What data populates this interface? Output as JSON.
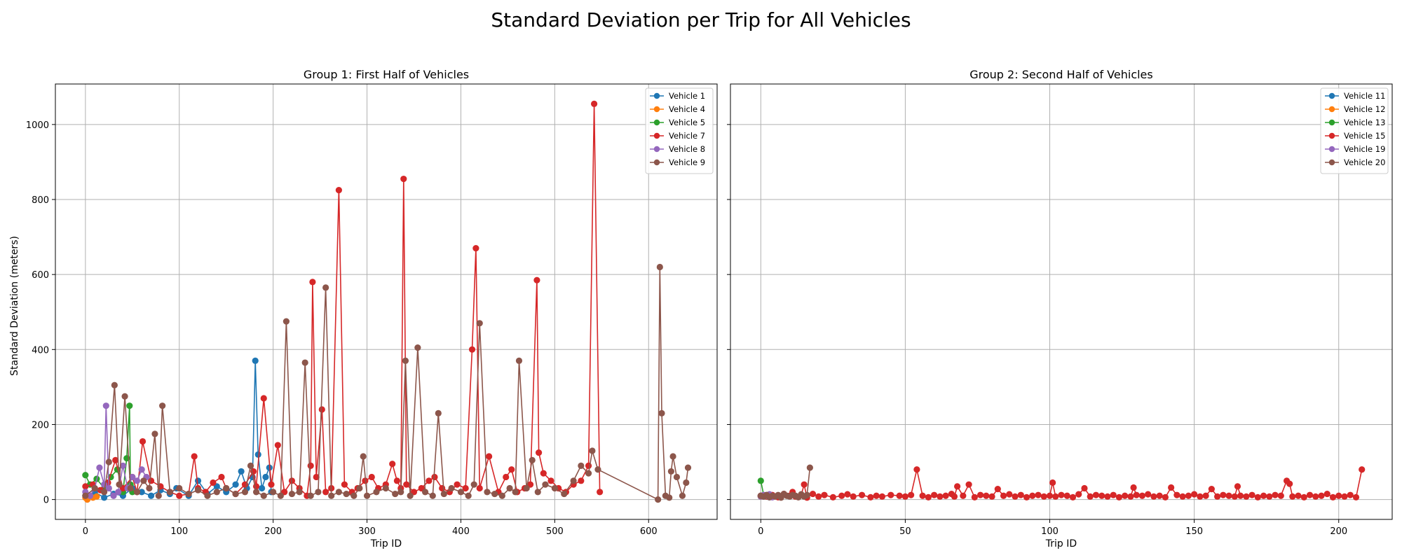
{
  "figure": {
    "title": "Standard Deviation per Trip for All Vehicles"
  },
  "colors": {
    "c1": "#1f77b4",
    "c2": "#ff7f0e",
    "c3": "#2ca02c",
    "c4": "#d62728",
    "c5": "#9467bd",
    "c6": "#8c564b",
    "grid": "#b0b0b0"
  },
  "chart_data": [
    {
      "type": "line",
      "title": "Group 1: First Half of Vehicles",
      "xlabel": "Trip ID",
      "ylabel": "Standard Deviation (meters)",
      "xlim": [
        -32,
        673
      ],
      "ylim": [
        -53,
        1108
      ],
      "xticks": [
        0,
        100,
        200,
        300,
        400,
        500,
        600
      ],
      "yticks": [
        0,
        200,
        400,
        600,
        800,
        1000
      ],
      "grid": true,
      "legend_position": "top-right",
      "series": [
        {
          "name": "Vehicle 1",
          "color": "#1f77b4",
          "x": [
            0,
            10,
            20,
            30,
            40,
            50,
            60,
            70,
            80,
            90,
            97,
            110,
            120,
            130,
            140,
            150,
            160,
            166,
            172,
            178,
            181,
            184,
            188,
            192,
            196,
            198
          ],
          "y": [
            10,
            20,
            5,
            15,
            10,
            30,
            20,
            10,
            25,
            15,
            30,
            10,
            50,
            15,
            35,
            20,
            40,
            75,
            30,
            60,
            370,
            120,
            30,
            60,
            85,
            20
          ]
        },
        {
          "name": "Vehicle 4",
          "color": "#ff7f0e",
          "x": [
            0,
            2,
            5,
            8,
            12
          ],
          "y": [
            5,
            0,
            10,
            5,
            8
          ]
        },
        {
          "name": "Vehicle 5",
          "color": "#2ca02c",
          "x": [
            0,
            5,
            12,
            20,
            27,
            34,
            40,
            44,
            47,
            48,
            50
          ],
          "y": [
            65,
            40,
            55,
            30,
            60,
            80,
            20,
            110,
            250,
            40,
            20
          ]
        },
        {
          "name": "Vehicle 7",
          "color": "#d62728",
          "x": [
            0,
            8,
            16,
            24,
            32,
            40,
            50,
            55,
            61,
            70,
            80,
            90,
            100,
            110,
            116,
            120,
            128,
            136,
            145,
            150,
            160,
            170,
            179,
            182,
            190,
            198,
            205,
            212,
            220,
            228,
            236,
            240,
            242,
            246,
            252,
            256,
            262,
            270,
            276,
            284,
            290,
            298,
            305,
            312,
            320,
            327,
            332,
            336,
            339,
            342,
            350,
            358,
            366,
            372,
            380,
            388,
            396,
            405,
            412,
            416,
            420,
            430,
            440,
            448,
            454,
            460,
            468,
            474,
            481,
            483,
            488,
            496,
            504,
            512,
            520,
            528,
            536,
            542,
            548
          ],
          "y": [
            35,
            40,
            25,
            45,
            105,
            30,
            60,
            20,
            155,
            50,
            35,
            20,
            10,
            15,
            115,
            30,
            20,
            45,
            60,
            30,
            15,
            40,
            75,
            35,
            270,
            40,
            145,
            20,
            50,
            30,
            10,
            90,
            580,
            60,
            240,
            20,
            30,
            825,
            40,
            20,
            30,
            50,
            60,
            30,
            40,
            95,
            50,
            30,
            855,
            40,
            20,
            30,
            50,
            60,
            30,
            20,
            40,
            30,
            400,
            670,
            30,
            115,
            20,
            60,
            80,
            20,
            30,
            40,
            585,
            125,
            70,
            50,
            30,
            20,
            40,
            50,
            90,
            1055,
            20
          ]
        },
        {
          "name": "Vehicle 8",
          "color": "#9467bd",
          "x": [
            0,
            5,
            10,
            15,
            20,
            22,
            25,
            30,
            35,
            40,
            45,
            50,
            55,
            60,
            65
          ],
          "y": [
            20,
            10,
            30,
            85,
            40,
            250,
            30,
            10,
            20,
            90,
            30,
            60,
            50,
            80,
            60
          ]
        },
        {
          "name": "Vehicle 9",
          "color": "#8c564b",
          "x": [
            0,
            10,
            20,
            25,
            31,
            36,
            42,
            48,
            55,
            62,
            68,
            74,
            78,
            82,
            90,
            100,
            110,
            120,
            130,
            140,
            150,
            160,
            170,
            176,
            182,
            190,
            200,
            208,
            214,
            220,
            228,
            234,
            240,
            248,
            256,
            262,
            270,
            278,
            286,
            292,
            296,
            300,
            310,
            320,
            330,
            336,
            341,
            346,
            354,
            362,
            370,
            376,
            382,
            390,
            400,
            408,
            414,
            420,
            428,
            436,
            444,
            452,
            458,
            462,
            470,
            476,
            482,
            490,
            500,
            510,
            520,
            528,
            536,
            540,
            546,
            610,
            612,
            614,
            618,
            622,
            624,
            626,
            630,
            636,
            640,
            642
          ],
          "y": [
            10,
            30,
            20,
            100,
            305,
            40,
            275,
            30,
            20,
            50,
            30,
            175,
            10,
            250,
            20,
            30,
            15,
            25,
            10,
            20,
            30,
            15,
            20,
            90,
            20,
            10,
            20,
            10,
            475,
            15,
            20,
            365,
            10,
            20,
            565,
            10,
            20,
            15,
            10,
            30,
            115,
            10,
            20,
            30,
            15,
            20,
            370,
            10,
            405,
            20,
            10,
            230,
            15,
            30,
            20,
            10,
            40,
            470,
            20,
            15,
            10,
            30,
            20,
            370,
            30,
            105,
            20,
            40,
            30,
            15,
            50,
            90,
            70,
            130,
            80,
            0,
            620,
            230,
            10,
            5,
            75,
            115,
            60,
            10,
            45,
            85
          ]
        }
      ]
    },
    {
      "type": "line",
      "title": "Group 2: Second Half of Vehicles",
      "xlabel": "Trip ID",
      "ylabel": "",
      "xlim": [
        -10.5,
        218.5
      ],
      "ylim": [
        -53,
        1108
      ],
      "xticks": [
        0,
        50,
        100,
        150,
        200
      ],
      "yticks": [
        0,
        200,
        400,
        600,
        800,
        1000
      ],
      "grid": true,
      "legend_position": "top-right",
      "series": [
        {
          "name": "Vehicle 11",
          "color": "#1f77b4",
          "x": [
            0,
            1,
            2,
            3
          ],
          "y": [
            10,
            8,
            12,
            6
          ]
        },
        {
          "name": "Vehicle 12",
          "color": "#ff7f0e",
          "x": [
            0,
            1
          ],
          "y": [
            8,
            10
          ]
        },
        {
          "name": "Vehicle 13",
          "color": "#2ca02c",
          "x": [
            0,
            1,
            2
          ],
          "y": [
            50,
            12,
            8
          ]
        },
        {
          "name": "Vehicle 15",
          "color": "#d62728",
          "x": [
            0,
            2,
            4,
            6,
            8,
            10,
            11,
            12,
            14,
            15,
            16,
            18,
            20,
            22,
            25,
            28,
            30,
            32,
            35,
            38,
            40,
            42,
            45,
            48,
            50,
            52,
            54,
            56,
            58,
            60,
            62,
            64,
            66,
            67,
            68,
            70,
            72,
            74,
            76,
            78,
            80,
            82,
            84,
            86,
            88,
            90,
            92,
            94,
            96,
            98,
            100,
            101,
            102,
            104,
            106,
            108,
            110,
            112,
            114,
            116,
            118,
            120,
            122,
            124,
            126,
            128,
            129,
            130,
            132,
            134,
            136,
            138,
            140,
            142,
            144,
            146,
            148,
            150,
            152,
            154,
            156,
            158,
            160,
            162,
            164,
            165,
            166,
            168,
            170,
            172,
            174,
            176,
            178,
            180,
            182,
            183,
            184,
            186,
            188,
            190,
            192,
            194,
            196,
            198,
            200,
            202,
            204,
            206,
            208
          ],
          "y": [
            10,
            8,
            12,
            6,
            15,
            10,
            20,
            8,
            12,
            40,
            5,
            15,
            8,
            12,
            6,
            10,
            14,
            8,
            12,
            6,
            10,
            8,
            12,
            10,
            8,
            12,
            80,
            10,
            6,
            12,
            8,
            10,
            15,
            8,
            35,
            10,
            40,
            6,
            12,
            10,
            8,
            28,
            10,
            14,
            8,
            12,
            6,
            10,
            12,
            8,
            10,
            45,
            8,
            12,
            10,
            6,
            14,
            30,
            8,
            12,
            10,
            8,
            12,
            6,
            10,
            8,
            32,
            12,
            10,
            14,
            8,
            10,
            6,
            32,
            12,
            8,
            10,
            14,
            8,
            10,
            28,
            8,
            12,
            10,
            8,
            35,
            10,
            8,
            12,
            6,
            10,
            8,
            12,
            10,
            50,
            42,
            8,
            10,
            6,
            12,
            8,
            10,
            15,
            6,
            10,
            8,
            12,
            6,
            80
          ]
        },
        {
          "name": "Vehicle 19",
          "color": "#9467bd",
          "x": [
            0,
            1,
            2,
            3,
            4
          ],
          "y": [
            8,
            12,
            10,
            14,
            6
          ]
        },
        {
          "name": "Vehicle 20",
          "color": "#8c564b",
          "x": [
            0,
            1,
            2,
            3,
            4,
            5,
            6,
            7,
            8,
            9,
            10,
            11,
            12,
            13,
            14,
            15,
            16,
            17
          ],
          "y": [
            10,
            8,
            12,
            6,
            10,
            8,
            12,
            5,
            15,
            10,
            8,
            12,
            10,
            6,
            14,
            8,
            12,
            85
          ]
        }
      ]
    }
  ]
}
